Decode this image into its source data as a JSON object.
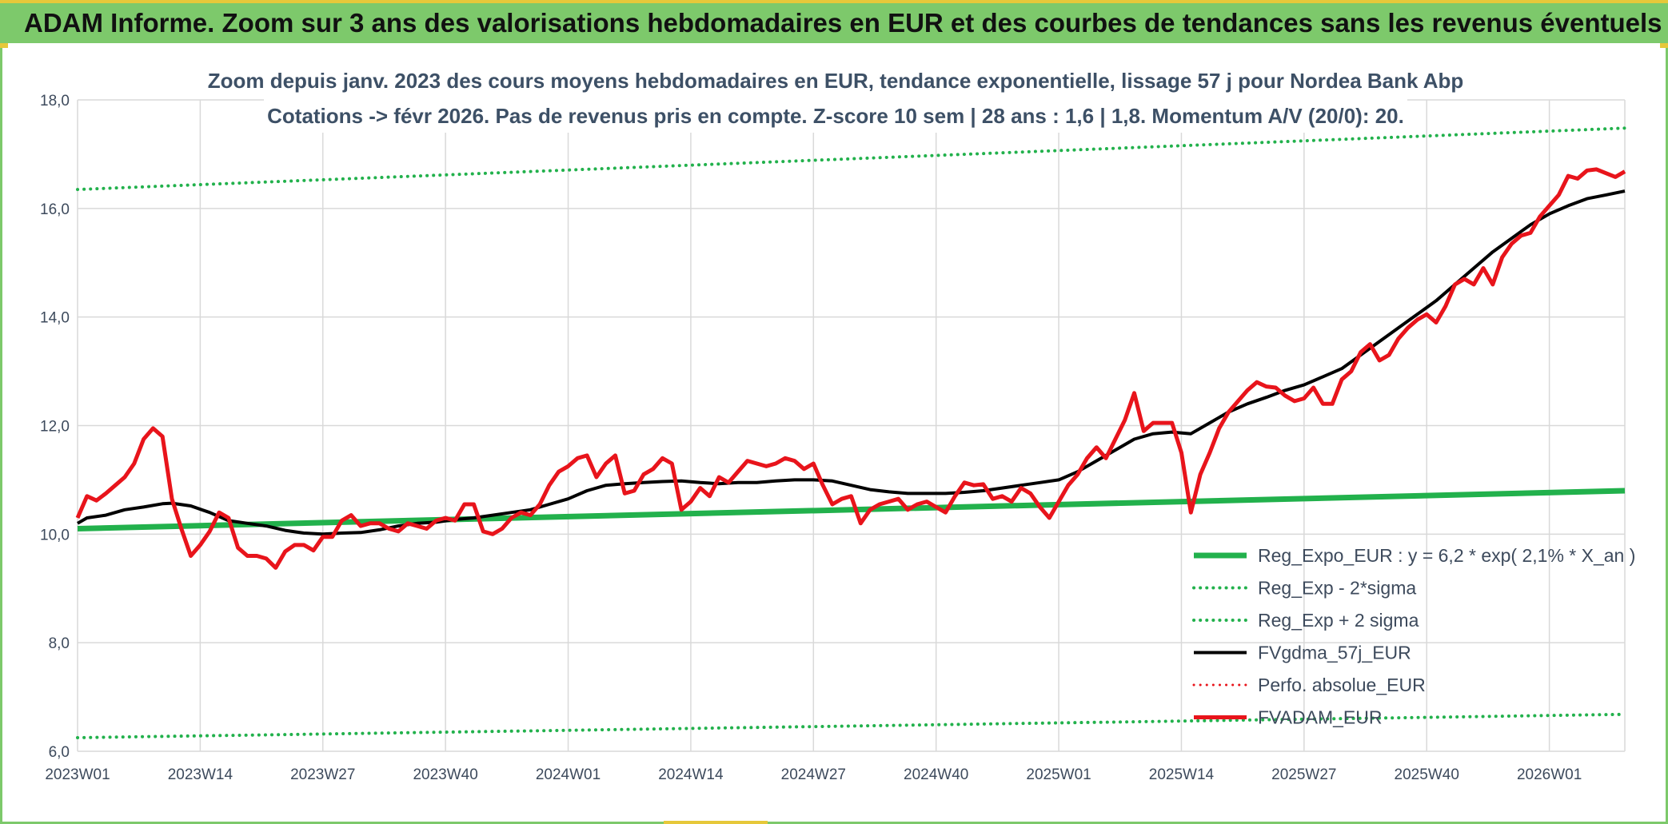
{
  "header": {
    "title": "ADAM Informe. Zoom sur 3 ans des valorisations hebdomadaires en EUR et des courbes de tendances sans les revenus éventuels"
  },
  "colors": {
    "banner": "#7dc96b",
    "accent": "#e6c83a",
    "reg_green": "#22b14c",
    "black": "#000000",
    "red": "#e8141b"
  },
  "chart_data": {
    "type": "line",
    "title_lines": [
      "Zoom depuis janv. 2023 des cours moyens hebdomadaires en EUR, tendance exponentielle, lissage 57 j pour Nordea Bank Abp",
      "Cotations -> févr 2026. Pas de revenus pris en compte. Z-score 10 sem | 28 ans : 1,6 | 1,8. Momentum A/V (20/0): 20."
    ],
    "x_start_label": "2023W01",
    "x_tick_labels": [
      "2023W01",
      "2023W14",
      "2023W27",
      "2023W40",
      "2024W01",
      "2024W14",
      "2024W27",
      "2024W40",
      "2025W01",
      "2025W14",
      "2025W27",
      "2025W40",
      "2026W01"
    ],
    "x_tick_weeks": [
      0,
      13,
      26,
      39,
      52,
      65,
      78,
      91,
      104,
      117,
      130,
      143,
      156
    ],
    "xlim": [
      0,
      164
    ],
    "ylim": [
      6.0,
      18.0
    ],
    "y_ticks": [
      6.0,
      8.0,
      10.0,
      12.0,
      14.0,
      16.0,
      18.0
    ],
    "y_tick_labels": [
      "6,0",
      "8,0",
      "10,0",
      "12,0",
      "14,0",
      "16,0",
      "18,0"
    ],
    "grid": true,
    "legend_position": "right",
    "series": [
      {
        "name": "Reg_Expo_EUR : y = 6,2 * exp( 2,1% *  X_an )",
        "style": "solid",
        "width": 7,
        "color": "#22b14c",
        "x": [
          0,
          164
        ],
        "y": [
          10.1,
          10.8
        ]
      },
      {
        "name": "Reg_Exp - 2*sigma",
        "style": "dotted",
        "width": 4,
        "color": "#22b14c",
        "x": [
          0,
          164
        ],
        "y": [
          6.25,
          6.68
        ]
      },
      {
        "name": "Reg_Exp + 2 sigma",
        "style": "dotted",
        "width": 4,
        "color": "#22b14c",
        "x": [
          0,
          164
        ],
        "y": [
          16.35,
          17.48
        ]
      },
      {
        "name": "FVgdma_57j_EUR",
        "style": "solid",
        "width": 4,
        "color": "#000000",
        "x": [
          0,
          1,
          3,
          5,
          7,
          9,
          10,
          12,
          14,
          16,
          18,
          20,
          22,
          24,
          26,
          28,
          30,
          32,
          34,
          36,
          38,
          40,
          42,
          44,
          46,
          48,
          50,
          52,
          54,
          56,
          58,
          60,
          62,
          64,
          66,
          68,
          70,
          72,
          74,
          76,
          78,
          80,
          82,
          84,
          86,
          88,
          90,
          92,
          94,
          96,
          98,
          100,
          102,
          104,
          106,
          108,
          110,
          112,
          114,
          116,
          118,
          120,
          122,
          124,
          126,
          128,
          130,
          132,
          134,
          136,
          138,
          140,
          142,
          144,
          146,
          148,
          150,
          152,
          154,
          156,
          158,
          160,
          162,
          164
        ],
        "y": [
          10.2,
          10.3,
          10.35,
          10.45,
          10.5,
          10.56,
          10.57,
          10.52,
          10.4,
          10.25,
          10.2,
          10.15,
          10.07,
          10.02,
          10.0,
          10.02,
          10.03,
          10.08,
          10.15,
          10.2,
          10.22,
          10.27,
          10.3,
          10.35,
          10.4,
          10.45,
          10.55,
          10.65,
          10.8,
          10.9,
          10.93,
          10.95,
          10.97,
          10.98,
          10.95,
          10.93,
          10.95,
          10.95,
          10.98,
          11.0,
          11.0,
          10.98,
          10.9,
          10.82,
          10.78,
          10.75,
          10.75,
          10.75,
          10.77,
          10.8,
          10.85,
          10.9,
          10.95,
          11.0,
          11.15,
          11.35,
          11.55,
          11.75,
          11.85,
          11.88,
          11.85,
          12.05,
          12.25,
          12.4,
          12.52,
          12.65,
          12.75,
          12.9,
          13.05,
          13.3,
          13.55,
          13.8,
          14.05,
          14.3,
          14.6,
          14.9,
          15.2,
          15.45,
          15.7,
          15.9,
          16.05,
          16.18,
          16.25,
          16.32
        ]
      },
      {
        "name": "Perfo. absolue_EUR",
        "style": "dotted",
        "width": 3,
        "color": "#e8141b",
        "x": [],
        "y": []
      },
      {
        "name": "FVADAM_EUR",
        "style": "solid",
        "width": 5,
        "color": "#e8141b",
        "x": [
          0,
          1,
          2,
          3,
          4,
          5,
          6,
          7,
          8,
          9,
          10,
          11,
          12,
          13,
          14,
          15,
          16,
          17,
          18,
          19,
          20,
          21,
          22,
          23,
          24,
          25,
          26,
          27,
          28,
          29,
          30,
          31,
          32,
          33,
          34,
          35,
          36,
          37,
          38,
          39,
          40,
          41,
          42,
          43,
          44,
          45,
          46,
          47,
          48,
          49,
          50,
          51,
          52,
          53,
          54,
          55,
          56,
          57,
          58,
          59,
          60,
          61,
          62,
          63,
          64,
          65,
          66,
          67,
          68,
          69,
          70,
          71,
          72,
          73,
          74,
          75,
          76,
          77,
          78,
          79,
          80,
          81,
          82,
          83,
          84,
          85,
          86,
          87,
          88,
          89,
          90,
          91,
          92,
          93,
          94,
          95,
          96,
          97,
          98,
          99,
          100,
          101,
          102,
          103,
          104,
          105,
          106,
          107,
          108,
          109,
          110,
          111,
          112,
          113,
          114,
          115,
          116,
          117,
          118,
          119,
          120,
          121,
          122,
          123,
          124,
          125,
          126,
          127,
          128,
          129,
          130,
          131,
          132,
          133,
          134,
          135,
          136,
          137,
          138,
          139,
          140,
          141,
          142,
          143,
          144,
          145,
          146,
          147,
          148,
          149,
          150,
          151,
          152,
          153,
          154,
          155,
          156,
          157,
          158,
          159,
          160,
          161,
          162,
          163,
          164
        ],
        "y": [
          10.3,
          10.7,
          10.62,
          10.75,
          10.9,
          11.05,
          11.3,
          11.75,
          11.95,
          11.8,
          10.65,
          10.1,
          9.6,
          9.8,
          10.05,
          10.4,
          10.3,
          9.75,
          9.6,
          9.6,
          9.55,
          9.38,
          9.68,
          9.8,
          9.8,
          9.7,
          9.95,
          9.95,
          10.25,
          10.35,
          10.15,
          10.2,
          10.2,
          10.1,
          10.05,
          10.2,
          10.15,
          10.1,
          10.25,
          10.3,
          10.25,
          10.55,
          10.55,
          10.05,
          10.0,
          10.1,
          10.3,
          10.4,
          10.35,
          10.55,
          10.9,
          11.15,
          11.25,
          11.4,
          11.45,
          11.05,
          11.3,
          11.45,
          10.75,
          10.8,
          11.1,
          11.2,
          11.4,
          11.3,
          10.45,
          10.6,
          10.85,
          10.7,
          11.05,
          10.95,
          11.15,
          11.35,
          11.3,
          11.25,
          11.3,
          11.4,
          11.35,
          11.2,
          11.3,
          10.9,
          10.55,
          10.65,
          10.7,
          10.2,
          10.45,
          10.55,
          10.6,
          10.65,
          10.45,
          10.55,
          10.6,
          10.5,
          10.4,
          10.7,
          10.95,
          10.9,
          10.92,
          10.65,
          10.7,
          10.6,
          10.85,
          10.75,
          10.5,
          10.3,
          10.6,
          10.9,
          11.1,
          11.4,
          11.6,
          11.4,
          11.75,
          12.1,
          12.6,
          11.9,
          12.05,
          12.05,
          12.05,
          11.5,
          10.4,
          11.1,
          11.5,
          11.95,
          12.25,
          12.45,
          12.65,
          12.8,
          12.72,
          12.7,
          12.55,
          12.45,
          12.5,
          12.7,
          12.4,
          12.4,
          12.85,
          13.0,
          13.35,
          13.5,
          13.2,
          13.3,
          13.6,
          13.8,
          13.95,
          14.05,
          13.9,
          14.2,
          14.6,
          14.7,
          14.6,
          14.9,
          14.6,
          15.1,
          15.35,
          15.5,
          15.55,
          15.85,
          16.05,
          16.25,
          16.6,
          16.55,
          16.7,
          16.72,
          16.65,
          16.58,
          16.68
        ]
      }
    ]
  }
}
